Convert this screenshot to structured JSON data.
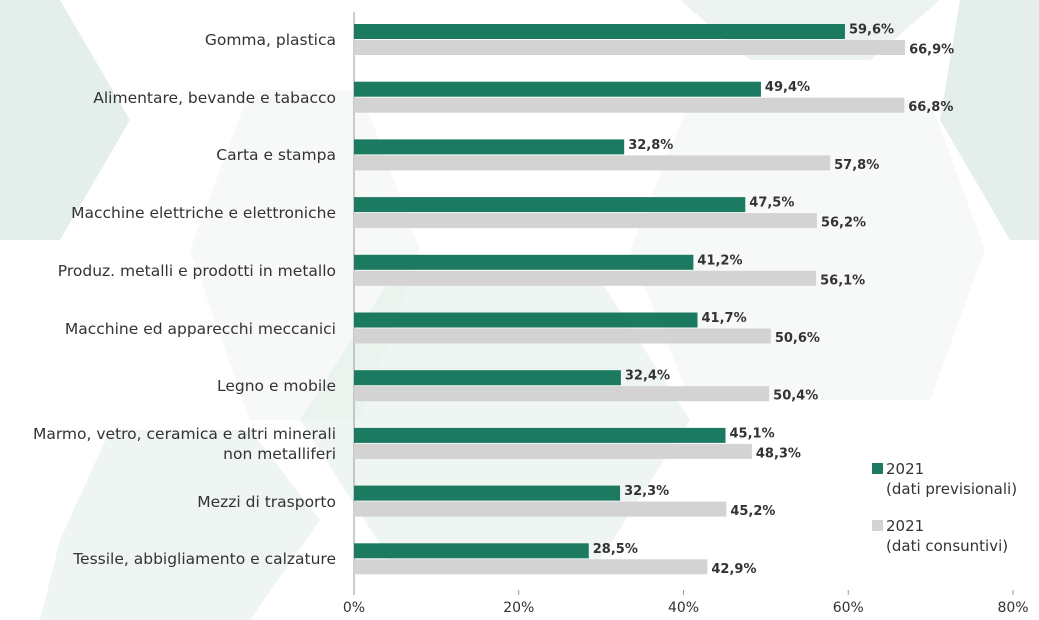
{
  "chart_data": {
    "type": "bar",
    "orientation": "horizontal",
    "categories": [
      "Gomma, plastica",
      "Alimentare, bevande e tabacco",
      "Carta e stampa",
      "Macchine elettriche e elettroniche",
      "Produz. metalli e prodotti in metallo",
      "Macchine ed apparecchi meccanici",
      "Legno e mobile",
      "Marmo, vetro, ceramica e altri minerali\nnon metalliferi",
      "Mezzi di trasporto",
      "Tessile, abbigliamento e calzature"
    ],
    "series": [
      {
        "name": "2021\n(dati previsionali)",
        "color": "#1b7a5f",
        "values": [
          59.6,
          49.4,
          32.8,
          47.5,
          41.2,
          41.7,
          32.4,
          45.1,
          32.3,
          28.5
        ],
        "value_labels": [
          "59,6%",
          "49,4%",
          "32,8%",
          "47,5%",
          "41,2%",
          "41,7%",
          "32,4%",
          "45,1%",
          "32,3%",
          "28,5%"
        ]
      },
      {
        "name": "2021\n(dati consuntivi)",
        "color": "#d3d3d3",
        "values": [
          66.9,
          66.8,
          57.8,
          56.2,
          56.1,
          50.6,
          50.4,
          48.3,
          45.2,
          42.9
        ],
        "value_labels": [
          "66,9%",
          "66,8%",
          "57,8%",
          "56,2%",
          "56,1%",
          "50,6%",
          "50,4%",
          "48,3%",
          "45,2%",
          "42,9%"
        ]
      }
    ],
    "xlim": [
      0,
      80
    ],
    "xticks": [
      {
        "value": 0,
        "label": "0%"
      },
      {
        "value": 20,
        "label": "20%"
      },
      {
        "value": 40,
        "label": "40%"
      },
      {
        "value": 60,
        "label": "60%"
      },
      {
        "value": 80,
        "label": "80%"
      }
    ]
  }
}
